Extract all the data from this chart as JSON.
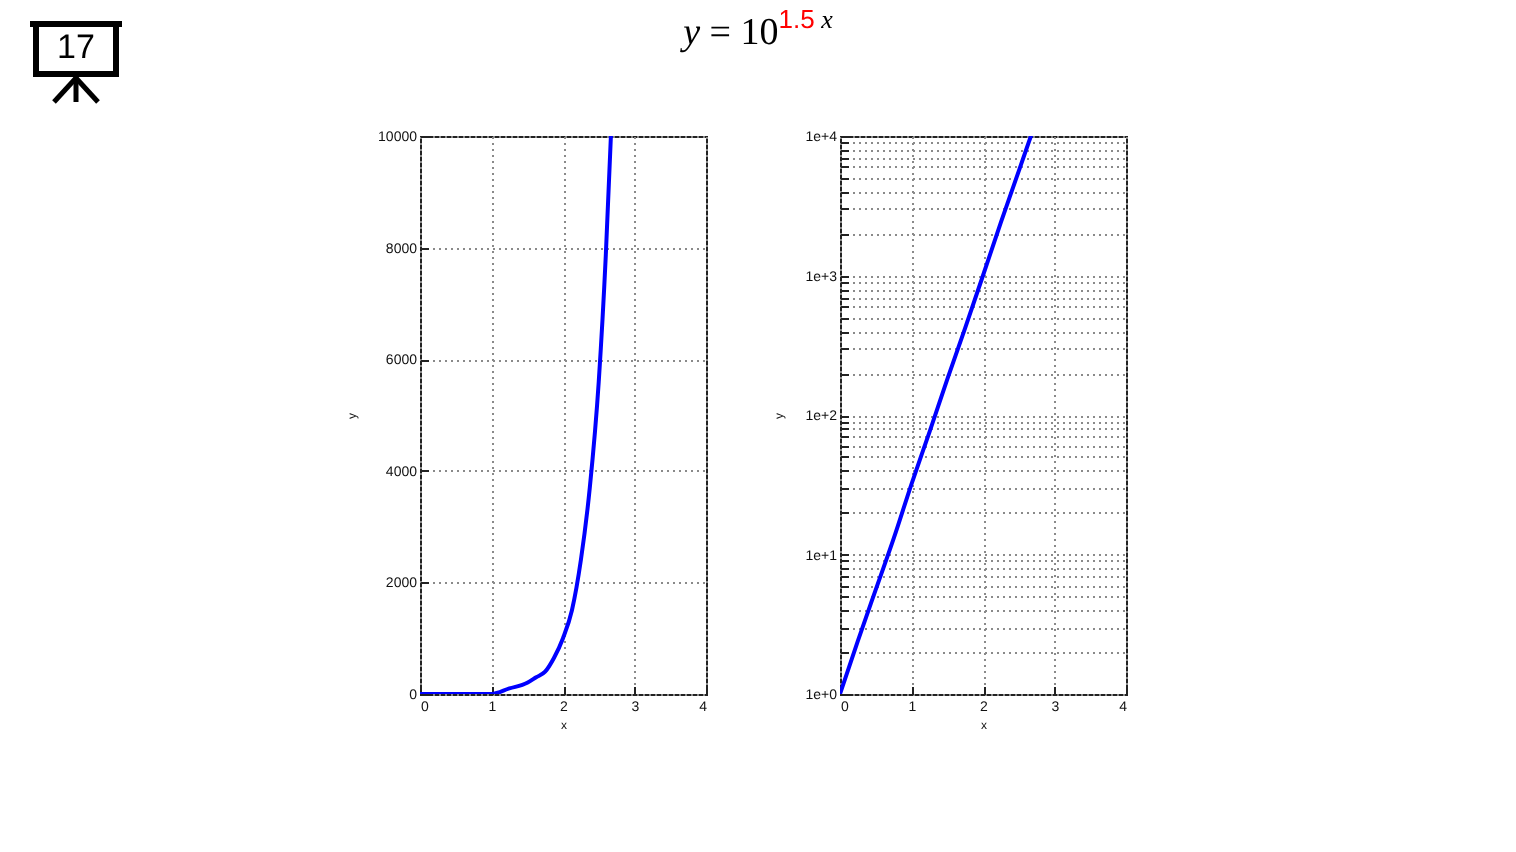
{
  "chart_data": [
    {
      "type": "line",
      "title": "y = 10$^{1.5 x}$",
      "annotations": [
        "17"
      ],
      "x": [
        0,
        0.5,
        1,
        1.25,
        1.5,
        1.625,
        1.75,
        1.875,
        2,
        2.125,
        2.25,
        2.375,
        2.5,
        2.6,
        2.67
      ],
      "series": [
        {
          "color": "#0000ff",
          "values": [
            0,
            0,
            0,
            100,
            200,
            300,
            400,
            650,
            1000,
            1500,
            2400,
            3700,
            5600,
            7900,
            10000
          ]
        }
      ],
      "xlabel": "x",
      "ylabel": "y",
      "xlim": [
        0,
        4
      ],
      "ylim": [
        0,
        10000
      ],
      "xticks": [
        0,
        1,
        2,
        3,
        4
      ],
      "yticks": [
        0,
        2000,
        4000,
        6000,
        8000,
        10000
      ],
      "grid": true
    },
    {
      "type": "line",
      "log": "y",
      "x": [
        0,
        0.25,
        0.5,
        0.75,
        1,
        1.25,
        1.5,
        1.75,
        2,
        2.25,
        2.5,
        2.67
      ],
      "series": [
        {
          "color": "#0000ff",
          "values": [
            1,
            2.4,
            5.6,
            13,
            32,
            75,
            180,
            420,
            1000,
            2400,
            5600,
            10000
          ]
        }
      ],
      "xlabel": "x",
      "ylabel": "y",
      "xlim": [
        0,
        4
      ],
      "ylim": [
        1,
        10000
      ],
      "xticks": [
        0,
        1,
        2,
        3,
        4
      ],
      "yticks": [
        {
          "value": 1,
          "label": "1e+0"
        },
        {
          "value": 2,
          "label": null
        },
        {
          "value": 3,
          "label": null
        },
        {
          "value": 4,
          "label": null
        },
        {
          "value": 5,
          "label": null
        },
        {
          "value": 6,
          "label": null
        },
        {
          "value": 7,
          "label": null
        },
        {
          "value": 8,
          "label": null
        },
        {
          "value": 9,
          "label": null
        },
        {
          "value": 10,
          "label": "1e+1"
        },
        {
          "value": 20,
          "label": null
        },
        {
          "value": 30,
          "label": null
        },
        {
          "value": 40,
          "label": null
        },
        {
          "value": 50,
          "label": null
        },
        {
          "value": 60,
          "label": null
        },
        {
          "value": 70,
          "label": null
        },
        {
          "value": 80,
          "label": null
        },
        {
          "value": 90,
          "label": null
        },
        {
          "value": 100,
          "label": "1e+2"
        },
        {
          "value": 200,
          "label": null
        },
        {
          "value": 300,
          "label": null
        },
        {
          "value": 400,
          "label": null
        },
        {
          "value": 500,
          "label": null
        },
        {
          "value": 600,
          "label": null
        },
        {
          "value": 700,
          "label": null
        },
        {
          "value": 800,
          "label": null
        },
        {
          "value": 900,
          "label": null
        },
        {
          "value": 1000,
          "label": "1e+3"
        },
        {
          "value": 2000,
          "label": null
        },
        {
          "value": 3000,
          "label": null
        },
        {
          "value": 4000,
          "label": null
        },
        {
          "value": 5000,
          "label": null
        },
        {
          "value": 6000,
          "label": null
        },
        {
          "value": 7000,
          "label": null
        },
        {
          "value": 8000,
          "label": null
        },
        {
          "value": 9000,
          "label": null
        },
        {
          "value": 10000,
          "label": "1e+4"
        }
      ],
      "grid": true
    }
  ]
}
